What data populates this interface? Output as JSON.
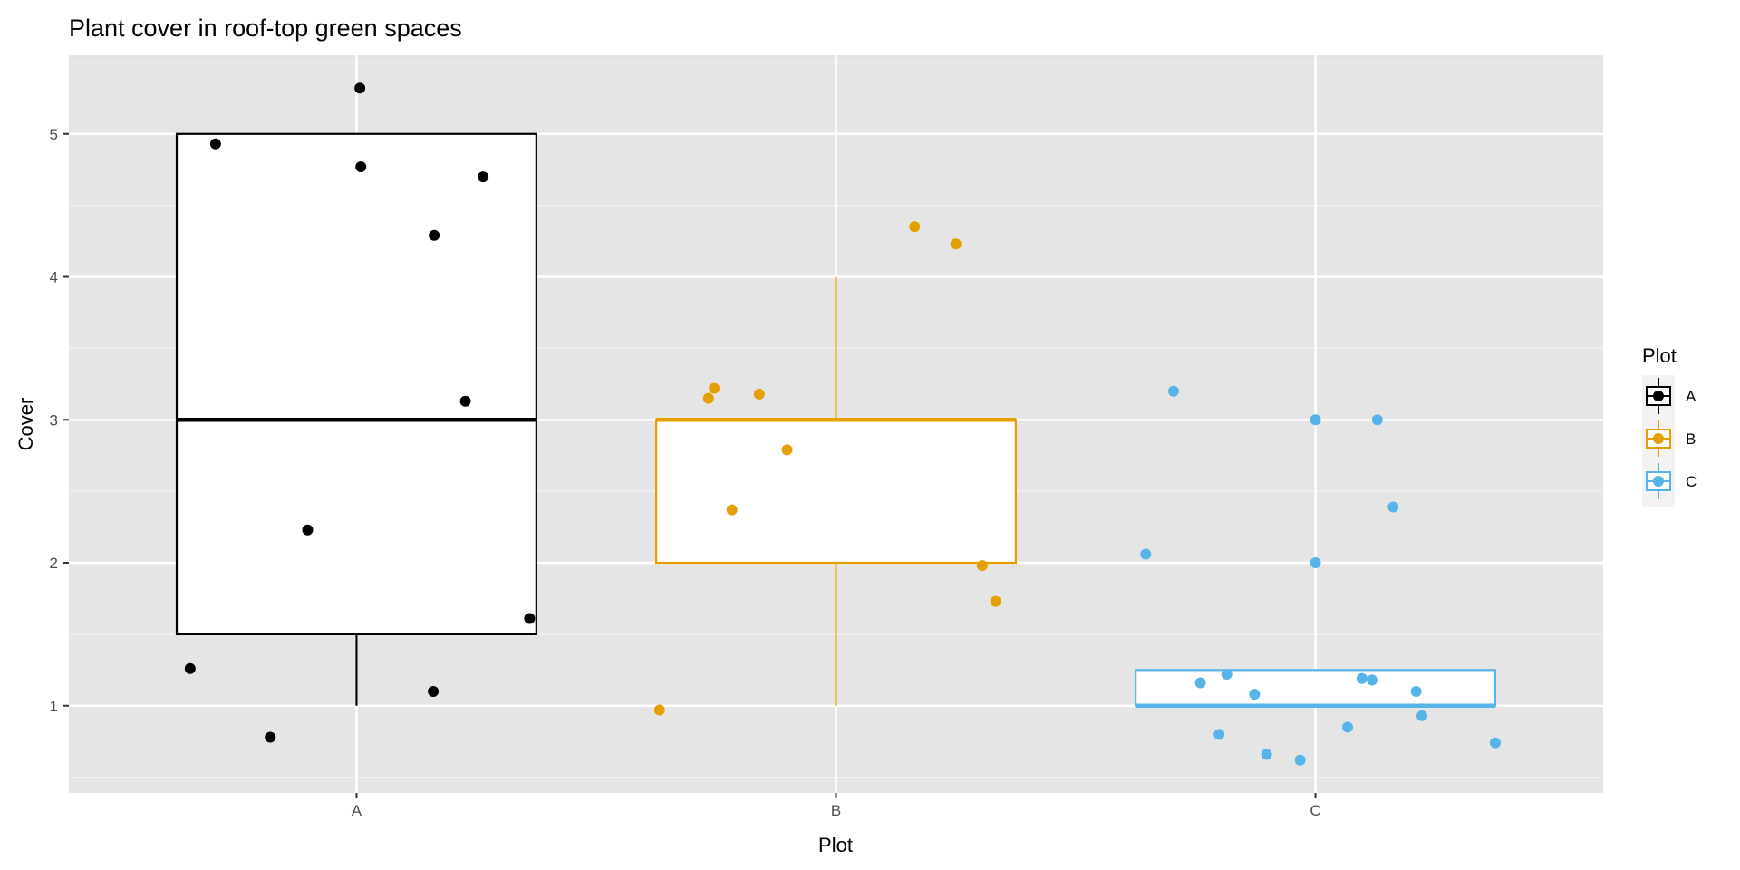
{
  "chart_data": {
    "type": "boxplot",
    "title": "Plant cover in roof-top green spaces",
    "xlabel": "Plot",
    "ylabel": "Cover",
    "categories": [
      "A",
      "B",
      "C"
    ],
    "xlim": [
      0.4,
      3.6
    ],
    "ylim": [
      0.39,
      5.55
    ],
    "yticks": [
      1,
      2,
      3,
      4,
      5
    ],
    "grid": true,
    "legend": {
      "title": "Plot",
      "placement": "right",
      "entries": [
        "A",
        "B",
        "C"
      ]
    },
    "colors": {
      "A": "#000000",
      "B": "#E69F00",
      "C": "#56B4E9"
    },
    "boxes": [
      {
        "category": "A",
        "whisker_low": 1,
        "q1": 1.5,
        "median": 3,
        "q3": 5,
        "whisker_high": 5
      },
      {
        "category": "B",
        "whisker_low": 1,
        "q1": 2,
        "median": 3,
        "q3": 3,
        "whisker_high": 4
      },
      {
        "category": "C",
        "whisker_low": 1,
        "q1": 1,
        "median": 1,
        "q3": 1.25,
        "whisker_high": 1.25
      }
    ],
    "points": [
      {
        "group": "A",
        "x": 0.706,
        "y": 4.93
      },
      {
        "group": "A",
        "x": 1.007,
        "y": 5.32
      },
      {
        "group": "A",
        "x": 1.009,
        "y": 4.77
      },
      {
        "group": "A",
        "x": 1.264,
        "y": 4.7
      },
      {
        "group": "A",
        "x": 1.162,
        "y": 4.29
      },
      {
        "group": "A",
        "x": 1.227,
        "y": 3.13
      },
      {
        "group": "A",
        "x": 0.898,
        "y": 2.23
      },
      {
        "group": "A",
        "x": 1.361,
        "y": 1.61
      },
      {
        "group": "A",
        "x": 0.653,
        "y": 1.26
      },
      {
        "group": "A",
        "x": 1.16,
        "y": 1.1
      },
      {
        "group": "A",
        "x": 0.82,
        "y": 0.78
      },
      {
        "group": "B",
        "x": 2.164,
        "y": 4.35
      },
      {
        "group": "B",
        "x": 2.25,
        "y": 4.23
      },
      {
        "group": "B",
        "x": 1.746,
        "y": 3.22
      },
      {
        "group": "B",
        "x": 1.734,
        "y": 3.15
      },
      {
        "group": "B",
        "x": 1.84,
        "y": 3.18
      },
      {
        "group": "B",
        "x": 1.898,
        "y": 2.79
      },
      {
        "group": "B",
        "x": 1.783,
        "y": 2.37
      },
      {
        "group": "B",
        "x": 2.305,
        "y": 1.98
      },
      {
        "group": "B",
        "x": 2.333,
        "y": 1.73
      },
      {
        "group": "B",
        "x": 1.632,
        "y": 0.97
      },
      {
        "group": "C",
        "x": 2.704,
        "y": 3.2
      },
      {
        "group": "C",
        "x": 3.0,
        "y": 3.0
      },
      {
        "group": "C",
        "x": 3.129,
        "y": 3.0
      },
      {
        "group": "C",
        "x": 3.162,
        "y": 2.39
      },
      {
        "group": "C",
        "x": 2.646,
        "y": 2.06
      },
      {
        "group": "C",
        "x": 3.0,
        "y": 2.0
      },
      {
        "group": "C",
        "x": 2.76,
        "y": 1.16
      },
      {
        "group": "C",
        "x": 2.815,
        "y": 1.22
      },
      {
        "group": "C",
        "x": 2.873,
        "y": 1.08
      },
      {
        "group": "C",
        "x": 3.097,
        "y": 1.19
      },
      {
        "group": "C",
        "x": 3.118,
        "y": 1.18
      },
      {
        "group": "C",
        "x": 3.21,
        "y": 1.1
      },
      {
        "group": "C",
        "x": 2.799,
        "y": 0.8
      },
      {
        "group": "C",
        "x": 3.067,
        "y": 0.85
      },
      {
        "group": "C",
        "x": 3.222,
        "y": 0.93
      },
      {
        "group": "C",
        "x": 2.898,
        "y": 0.66
      },
      {
        "group": "C",
        "x": 2.968,
        "y": 0.62
      },
      {
        "group": "C",
        "x": 3.375,
        "y": 0.74
      }
    ]
  }
}
